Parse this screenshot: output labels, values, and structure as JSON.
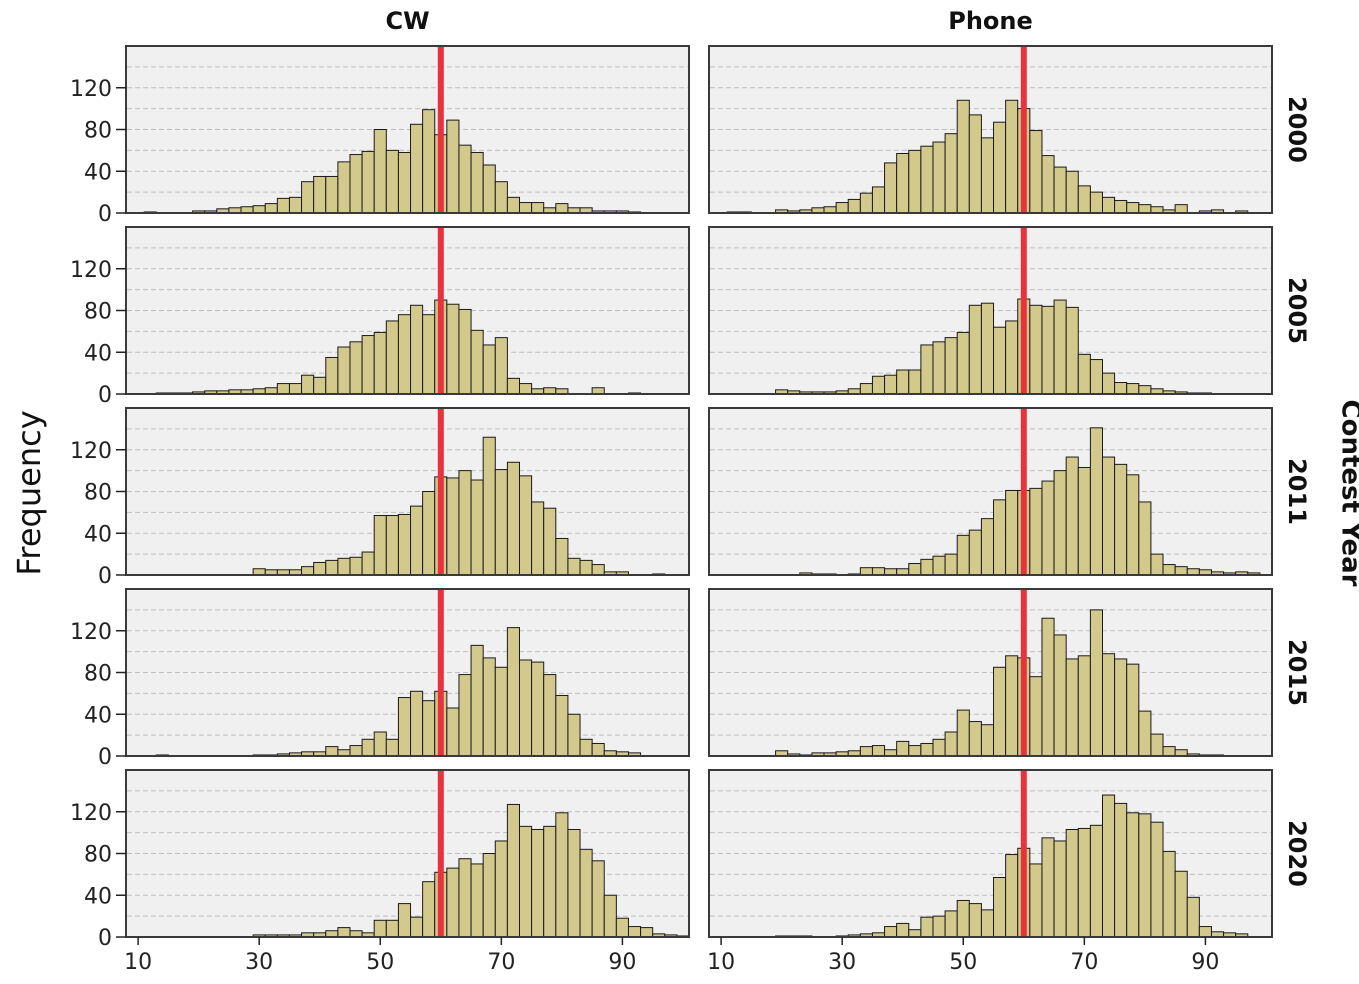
{
  "chart_data": {
    "type": "bar",
    "subtype": "faceted-histogram",
    "ylabel": "Frequency",
    "row_label": "Contest Year",
    "columns": [
      "CW",
      "Phone"
    ],
    "rows": [
      "2000",
      "2005",
      "2011",
      "2015",
      "2020"
    ],
    "bin_start": 5,
    "bin_width": 2,
    "bin_count": 48,
    "x_ticks": [
      10,
      30,
      50,
      70,
      90
    ],
    "xlim": [
      8,
      101
    ],
    "ylim": [
      0,
      160
    ],
    "y_ticks": [
      0,
      40,
      80,
      120
    ],
    "y_gridlines": [
      20,
      40,
      60,
      80,
      100,
      120,
      140,
      160
    ],
    "reference_line_x": 60,
    "colors": {
      "bar": "#d4c98d",
      "bar_edge": "#1a1a1a",
      "panel_bg": "#f0f0f0",
      "reference": "#e8323c",
      "grid": "#bdbdbd"
    },
    "panels": [
      {
        "column": "CW",
        "row": "2000",
        "values": [
          0,
          0,
          0,
          1,
          0,
          0,
          0,
          2,
          2,
          4,
          5,
          6,
          7,
          9,
          14,
          15,
          30,
          35,
          35,
          49,
          56,
          59,
          80,
          60,
          58,
          85,
          99,
          75,
          89,
          65,
          58,
          46,
          30,
          15,
          10,
          10,
          5,
          9,
          5,
          5,
          2,
          2,
          2,
          1,
          0,
          0,
          0,
          0
        ]
      },
      {
        "column": "Phone",
        "row": "2000",
        "values": [
          0,
          0,
          0,
          1,
          1,
          0,
          0,
          3,
          2,
          3,
          5,
          6,
          10,
          13,
          19,
          25,
          48,
          57,
          60,
          64,
          68,
          76,
          108,
          94,
          72,
          87,
          108,
          100,
          79,
          55,
          44,
          40,
          26,
          20,
          15,
          12,
          10,
          8,
          6,
          3,
          8,
          0,
          2,
          3,
          0,
          2,
          0,
          0
        ]
      },
      {
        "column": "CW",
        "row": "2005",
        "values": [
          0,
          0,
          0,
          0,
          1,
          1,
          1,
          2,
          3,
          3,
          4,
          4,
          5,
          6,
          10,
          10,
          18,
          16,
          35,
          45,
          50,
          56,
          59,
          70,
          76,
          85,
          76,
          90,
          86,
          81,
          61,
          47,
          54,
          15,
          10,
          5,
          6,
          5,
          0,
          0,
          6,
          0,
          0,
          1,
          0,
          0,
          0,
          0
        ]
      },
      {
        "column": "Phone",
        "row": "2005",
        "values": [
          0,
          0,
          0,
          0,
          0,
          0,
          0,
          4,
          3,
          2,
          2,
          2,
          3,
          5,
          10,
          17,
          18,
          23,
          23,
          47,
          50,
          54,
          59,
          85,
          87,
          64,
          70,
          91,
          85,
          84,
          90,
          83,
          38,
          33,
          20,
          11,
          10,
          8,
          5,
          3,
          2,
          1,
          1,
          0,
          0,
          0,
          0,
          0
        ]
      },
      {
        "column": "CW",
        "row": "2011",
        "values": [
          0,
          0,
          0,
          0,
          0,
          0,
          0,
          0,
          0,
          0,
          0,
          0,
          6,
          5,
          5,
          5,
          8,
          12,
          14,
          16,
          17,
          22,
          57,
          57,
          58,
          66,
          80,
          94,
          93,
          100,
          91,
          132,
          101,
          108,
          95,
          70,
          64,
          35,
          16,
          14,
          10,
          3,
          3,
          0,
          0,
          1,
          0,
          0
        ]
      },
      {
        "column": "Phone",
        "row": "2011",
        "values": [
          0,
          0,
          0,
          0,
          0,
          0,
          0,
          0,
          0,
          2,
          1,
          1,
          0,
          1,
          7,
          7,
          6,
          6,
          11,
          15,
          18,
          20,
          38,
          43,
          54,
          72,
          81,
          81,
          83,
          90,
          100,
          113,
          103,
          141,
          113,
          106,
          96,
          70,
          20,
          10,
          8,
          6,
          5,
          3,
          2,
          3,
          2,
          0
        ]
      },
      {
        "column": "CW",
        "row": "2015",
        "values": [
          0,
          0,
          0,
          0,
          1,
          0,
          0,
          0,
          0,
          0,
          0,
          0,
          1,
          1,
          2,
          3,
          4,
          4,
          9,
          6,
          10,
          16,
          23,
          16,
          56,
          62,
          53,
          62,
          46,
          78,
          106,
          94,
          85,
          123,
          92,
          90,
          78,
          58,
          40,
          16,
          12,
          5,
          4,
          3,
          0,
          0,
          0,
          0
        ]
      },
      {
        "column": "Phone",
        "row": "2015",
        "values": [
          0,
          0,
          0,
          0,
          0,
          0,
          0,
          5,
          2,
          1,
          3,
          3,
          4,
          5,
          9,
          10,
          6,
          14,
          10,
          12,
          16,
          23,
          44,
          33,
          30,
          85,
          96,
          94,
          76,
          132,
          116,
          93,
          96,
          140,
          98,
          93,
          88,
          43,
          21,
          9,
          6,
          2,
          1,
          1,
          0,
          0,
          0,
          0
        ]
      },
      {
        "column": "CW",
        "row": "2020",
        "values": [
          0,
          0,
          0,
          0,
          0,
          0,
          0,
          0,
          0,
          0,
          0,
          0,
          2,
          2,
          2,
          2,
          4,
          4,
          6,
          9,
          6,
          4,
          16,
          16,
          32,
          19,
          53,
          62,
          66,
          75,
          70,
          80,
          92,
          127,
          106,
          103,
          106,
          119,
          103,
          84,
          73,
          40,
          18,
          10,
          9,
          3,
          2,
          1
        ]
      },
      {
        "column": "Phone",
        "row": "2020",
        "values": [
          0,
          0,
          0,
          0,
          0,
          0,
          0,
          1,
          1,
          1,
          0,
          0,
          1,
          2,
          3,
          4,
          10,
          13,
          7,
          19,
          20,
          25,
          35,
          32,
          26,
          57,
          79,
          85,
          70,
          95,
          92,
          103,
          104,
          107,
          136,
          128,
          119,
          118,
          110,
          82,
          63,
          38,
          10,
          5,
          4,
          3,
          0,
          0
        ]
      }
    ]
  }
}
